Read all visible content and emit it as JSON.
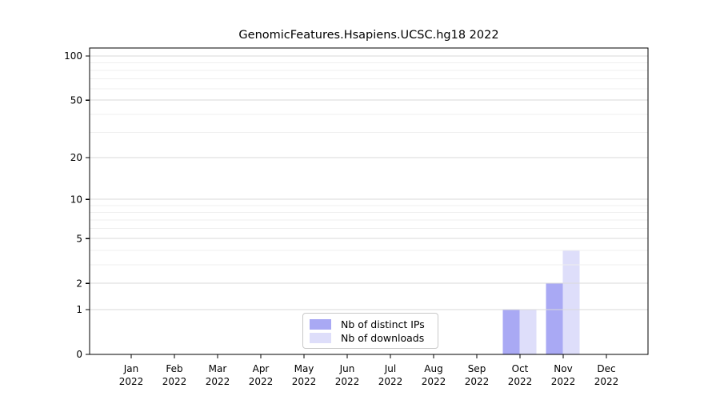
{
  "chart_data": {
    "type": "bar",
    "title": "GenomicFeatures.Hsapiens.UCSC.hg18 2022",
    "categories": [
      "Jan",
      "Feb",
      "Mar",
      "Apr",
      "May",
      "Jun",
      "Jul",
      "Aug",
      "Sep",
      "Oct",
      "Nov",
      "Dec"
    ],
    "x_tick_year": "2022",
    "series": [
      {
        "name": "Nb of distinct IPs",
        "color": "#a9a9f4",
        "values": [
          0,
          0,
          0,
          0,
          0,
          0,
          0,
          0,
          0,
          1,
          2,
          0
        ]
      },
      {
        "name": "Nb of downloads",
        "color": "#dedefa",
        "values": [
          0,
          0,
          0,
          0,
          0,
          0,
          0,
          0,
          0,
          1,
          4,
          0
        ]
      }
    ],
    "yscale": "log1p",
    "ylim": [
      0,
      113
    ],
    "y_major_ticks": [
      0,
      1,
      2,
      5,
      10,
      20,
      50,
      100
    ],
    "y_minor_gridlines": [
      3,
      4,
      6,
      7,
      8,
      9,
      30,
      40,
      60,
      70,
      80,
      90
    ],
    "grid": true,
    "legend_position": "lower center, inside plot",
    "colors": {
      "grid_major": "#d9d9d9",
      "grid_minor": "#efefef",
      "axis": "#000000",
      "text": "#000000",
      "background": "#ffffff"
    }
  }
}
